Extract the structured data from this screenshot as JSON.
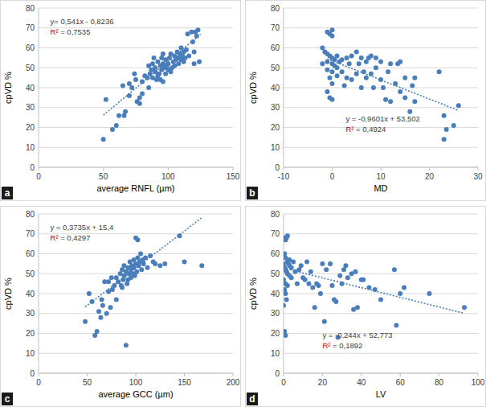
{
  "chart_data": [
    {
      "type": "scatter",
      "title": "a",
      "x_label": "average RNFL (µm)",
      "y_label": "cpVD %",
      "xlim": [
        0,
        150
      ],
      "xticks": [
        0,
        50,
        100,
        150
      ],
      "ylim": [
        0,
        80
      ],
      "yticks": [
        0,
        10,
        20,
        30,
        40,
        50,
        60,
        70,
        80
      ],
      "grid": true,
      "annotations": [
        "y= 0,541x - 0,8236",
        "R² = 0,7535"
      ],
      "series": [
        {
          "type": "scatter",
          "marker": "circle",
          "color": "#4a7ebb",
          "x": [
            50,
            52,
            57,
            60,
            62,
            65,
            66,
            67,
            70,
            70,
            72,
            74,
            75,
            76,
            78,
            78,
            80,
            80,
            82,
            84,
            85,
            86,
            87,
            88,
            88,
            90,
            90,
            91,
            92,
            92,
            93,
            94,
            95,
            95,
            96,
            96,
            97,
            98,
            98,
            99,
            100,
            100,
            101,
            102,
            102,
            103,
            104,
            105,
            105,
            106,
            107,
            108,
            108,
            109,
            110,
            110,
            111,
            112,
            112,
            113,
            114,
            115,
            116,
            118,
            119,
            120,
            120,
            121,
            122,
            123,
            124,
            96,
            94,
            89,
            85
          ],
          "values": [
            14,
            34,
            19,
            21,
            26,
            41,
            26,
            28,
            42,
            36,
            40,
            47,
            44,
            33,
            32,
            35,
            37,
            43,
            46,
            45,
            40,
            47,
            49,
            45,
            52,
            48,
            50,
            44,
            46,
            53,
            47,
            51,
            49,
            55,
            43,
            52,
            50,
            47,
            54,
            51,
            49,
            52,
            55,
            48,
            57,
            50,
            53,
            56,
            51,
            54,
            58,
            52,
            55,
            57,
            60,
            54,
            56,
            58,
            53,
            55,
            59,
            67,
            56,
            68,
            63,
            58,
            52,
            68,
            66,
            69,
            53,
            57,
            44,
            55,
            51
          ]
        },
        {
          "type": "line",
          "line_style": "dotted",
          "color": "#4a7ebb",
          "x": [
            50,
            125
          ],
          "values": [
            26.2264,
            66.8014
          ]
        }
      ]
    },
    {
      "type": "scatter",
      "title": "b",
      "x_label": "MD",
      "y_label": "cpVD %",
      "xlim": [
        -10,
        30
      ],
      "xticks": [
        -10,
        0,
        10,
        20,
        30
      ],
      "ylim": [
        0,
        80
      ],
      "yticks": [
        0,
        10,
        20,
        30,
        40,
        50,
        60,
        70,
        80
      ],
      "grid": true,
      "annotations": [
        "y = -0,9601x + 53,502",
        "R² = 0,4924"
      ],
      "series": [
        {
          "type": "scatter",
          "marker": "circle",
          "color": "#4a7ebb",
          "x": [
            -1,
            -0.5,
            0,
            0,
            -2,
            -1.5,
            -1,
            -0.5,
            0,
            0.5,
            -1,
            -2,
            0,
            0.5,
            1,
            -1,
            0,
            -0.5,
            0,
            -1,
            -0.5,
            0,
            1,
            1.5,
            2,
            2,
            3,
            3,
            3.5,
            4,
            4,
            5,
            5,
            5.5,
            6,
            6,
            6.5,
            7,
            7,
            7.5,
            8,
            8,
            8.5,
            9,
            9,
            10,
            10,
            10.5,
            11,
            11.5,
            12,
            12,
            13,
            13.5,
            14,
            14,
            15,
            15,
            16,
            16.5,
            17,
            17,
            22,
            23,
            23.5,
            23,
            25,
            26,
            2.5,
            1
          ],
          "values": [
            68,
            67,
            69,
            66,
            60,
            58,
            57,
            56,
            55,
            54,
            53,
            52,
            52,
            51,
            50,
            49,
            48,
            45,
            42,
            38,
            35,
            34,
            56,
            53,
            54,
            48,
            55,
            45,
            52,
            56,
            44,
            58,
            47,
            52,
            55,
            40,
            48,
            53,
            45,
            55,
            56,
            47,
            40,
            55,
            50,
            53,
            44,
            40,
            34,
            48,
            33,
            52,
            42,
            52,
            53,
            38,
            45,
            35,
            28,
            41,
            45,
            33,
            48,
            26,
            19,
            14,
            21,
            31,
            41,
            46
          ]
        },
        {
          "type": "line",
          "line_style": "dotted",
          "color": "#4a7ebb",
          "x": [
            -1,
            26
          ],
          "values": [
            54.4621,
            28.5394
          ]
        }
      ]
    },
    {
      "type": "scatter",
      "title": "c",
      "x_label": "average GCC (µm)",
      "y_label": "cpVD %",
      "xlim": [
        0,
        200
      ],
      "xticks": [
        0,
        50,
        100,
        150,
        200
      ],
      "ylim": [
        0,
        80
      ],
      "yticks": [
        0,
        10,
        20,
        30,
        40,
        50,
        60,
        70,
        80
      ],
      "grid": true,
      "annotations": [
        "y = 0,3735x + 15,4",
        "R² = 0,4297"
      ],
      "series": [
        {
          "type": "scatter",
          "marker": "circle",
          "color": "#4a7ebb",
          "x": [
            48,
            52,
            55,
            58,
            60,
            62,
            64,
            65,
            66,
            68,
            70,
            72,
            72,
            74,
            75,
            76,
            78,
            80,
            80,
            82,
            84,
            85,
            86,
            87,
            88,
            88,
            90,
            90,
            91,
            92,
            93,
            94,
            95,
            95,
            96,
            97,
            98,
            98,
            99,
            100,
            100,
            101,
            102,
            102,
            103,
            104,
            105,
            106,
            107,
            108,
            110,
            112,
            115,
            118,
            120,
            125,
            130,
            145,
            150,
            168,
            92,
            86
          ],
          "values": [
            26,
            40,
            36,
            19,
            21,
            31,
            28,
            37,
            34,
            46,
            30,
            41,
            46,
            33,
            48,
            42,
            44,
            37,
            48,
            46,
            50,
            44,
            52,
            47,
            54,
            49,
            51,
            14,
            45,
            53,
            50,
            56,
            48,
            52,
            54,
            50,
            57,
            53,
            49,
            68,
            55,
            51,
            58,
            67,
            54,
            56,
            60,
            52,
            57,
            55,
            58,
            53,
            59,
            56,
            55,
            54,
            55,
            69,
            56,
            54,
            47,
            43
          ]
        },
        {
          "type": "line",
          "line_style": "dotted",
          "color": "#4a7ebb",
          "x": [
            48,
            168
          ],
          "values": [
            33.328,
            78.148
          ]
        }
      ]
    },
    {
      "type": "scatter",
      "title": "d",
      "x_label": "LV",
      "y_label": "cpVD %",
      "xlim": [
        0,
        100
      ],
      "xticks": [
        0,
        20,
        40,
        60,
        80,
        100
      ],
      "ylim": [
        0,
        80
      ],
      "yticks": [
        0,
        10,
        20,
        30,
        40,
        50,
        60,
        70,
        80
      ],
      "grid": true,
      "annotations": [
        "y = -0,244x + 52,773",
        "R² = 0,1892"
      ],
      "series": [
        {
          "type": "scatter",
          "marker": "circle",
          "color": "#4a7ebb",
          "x": [
            0.5,
            1,
            1.5,
            2,
            0.5,
            1,
            2,
            0,
            0.5,
            1,
            1.5,
            2,
            3,
            3,
            4,
            0,
            1,
            2,
            0.5,
            1,
            1.5,
            0,
            0.5,
            1,
            3,
            4,
            5,
            6,
            7,
            8,
            9,
            10,
            11,
            12,
            13,
            14,
            15,
            16,
            17,
            18,
            19,
            20,
            21,
            22,
            24,
            25,
            26,
            27,
            28,
            29,
            30,
            31,
            32,
            33,
            35,
            36,
            37,
            38,
            40,
            41,
            44,
            47,
            50,
            57,
            58,
            60,
            62,
            75,
            93,
            2.5
          ],
          "values": [
            68,
            67,
            68,
            69,
            60,
            58,
            56,
            55,
            53,
            52,
            51,
            50,
            54,
            49,
            48,
            47,
            45,
            44,
            42,
            40,
            37,
            34,
            21,
            19,
            57,
            53,
            56,
            51,
            45,
            52,
            54,
            48,
            47,
            56,
            45,
            51,
            43,
            33,
            45,
            44,
            40,
            55,
            26,
            52,
            55,
            44,
            37,
            36,
            18,
            49,
            45,
            52,
            54,
            48,
            50,
            32,
            51,
            33,
            47,
            47,
            43,
            42,
            37,
            52,
            24,
            40,
            43,
            40,
            33,
            55
          ]
        },
        {
          "type": "line",
          "line_style": "dotted",
          "color": "#4a7ebb",
          "x": [
            0,
            93
          ],
          "values": [
            52.773,
            30.081
          ]
        }
      ]
    }
  ]
}
